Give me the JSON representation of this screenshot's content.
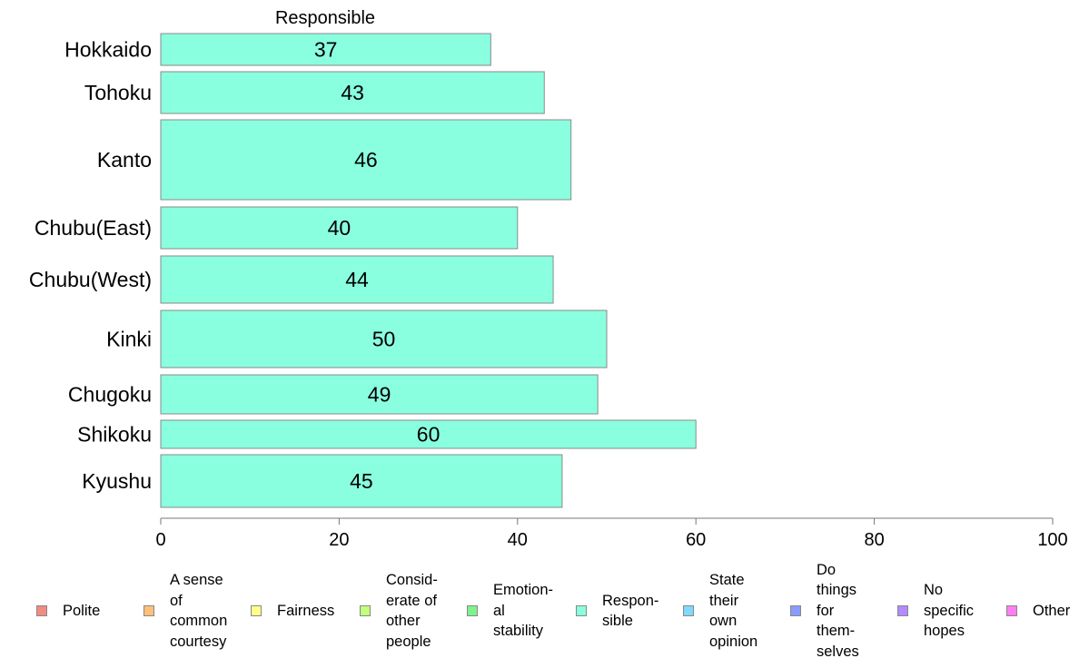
{
  "chart_data": {
    "type": "bar",
    "orientation": "horizontal",
    "title": "Responsible",
    "categories": [
      "Hokkaido",
      "Tohoku",
      "Kanto",
      "Chubu(East)",
      "Chubu(West)",
      "Kinki",
      "Chugoku",
      "Shikoku",
      "Kyushu"
    ],
    "series": [
      {
        "name": "Responsible",
        "values": [
          37,
          43,
          46,
          40,
          44,
          50,
          49,
          60,
          45
        ],
        "color": "#8affdf"
      }
    ],
    "data_labels": [
      "37",
      "43",
      "46",
      "40",
      "44",
      "50",
      "49",
      "60",
      "45"
    ],
    "xlim": [
      0,
      100
    ],
    "x_ticks": [
      0,
      20,
      40,
      60,
      80,
      100
    ],
    "x_tick_labels": [
      "0",
      "20",
      "40",
      "60",
      "80",
      "100"
    ],
    "grid": false,
    "legend_position": "bottom",
    "legend": [
      {
        "label": "Polite",
        "color": "#f28b82"
      },
      {
        "label": "A sense\nof\ncommon\ncourtesy",
        "color": "#ffc07a"
      },
      {
        "label": "Fairness",
        "color": "#ffff8a"
      },
      {
        "label": "Consid-\nerate of\nother\npeople",
        "color": "#c2ff7a"
      },
      {
        "label": "Emotion-\nal\nstability",
        "color": "#7ef28e"
      },
      {
        "label": "Respon-\nsible",
        "color": "#8affdf"
      },
      {
        "label": "State\ntheir\nown\nopinion",
        "color": "#82d8ff"
      },
      {
        "label": "Do\nthings\nfor\nthem-\nselves",
        "color": "#8a9cff"
      },
      {
        "label": "No\nspecific\nhopes",
        "color": "#b48aff"
      },
      {
        "label": "Other",
        "color": "#ff7ff2"
      }
    ]
  }
}
